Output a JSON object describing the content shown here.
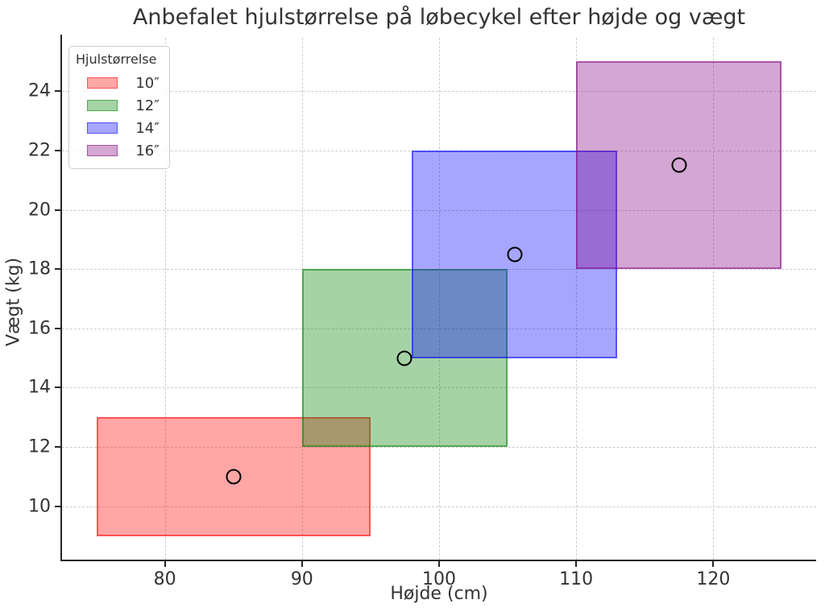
{
  "chart_data": {
    "type": "scatter",
    "title": "Anbefalet hjulstørrelse på løbecykel efter højde og vægt",
    "xlabel": "Højde (cm)",
    "ylabel": "Vægt (kg)",
    "xlim": [
      72.5,
      127.5
    ],
    "ylim": [
      8.2,
      25.8
    ],
    "xticks": [
      80,
      90,
      100,
      110,
      120
    ],
    "yticks": [
      10,
      12,
      14,
      16,
      18,
      20,
      22,
      24
    ],
    "grid": true,
    "grid_style": "dashed",
    "grid_color": "#cdcdcd",
    "spine_color": "#262626",
    "text_color": "#333333",
    "legend": {
      "title": "Hjulstørrelse",
      "position": "upper left"
    },
    "style": {
      "fill_alpha": 0.35,
      "edge_alpha": 0.5,
      "marker": {
        "shape": "circle-hollow",
        "edge_color": "#000000"
      }
    },
    "series": [
      {
        "name": "10″",
        "color": "#ff0000",
        "height_range_cm": [
          75,
          95
        ],
        "weight_range_kg": [
          9,
          13
        ],
        "center_point": {
          "x": 85,
          "y": 11
        }
      },
      {
        "name": "12″",
        "color": "#008000",
        "height_range_cm": [
          90,
          105
        ],
        "weight_range_kg": [
          12,
          18
        ],
        "center_point": {
          "x": 97.5,
          "y": 15
        }
      },
      {
        "name": "14″",
        "color": "#0000ff",
        "height_range_cm": [
          98,
          113
        ],
        "weight_range_kg": [
          15,
          22
        ],
        "center_point": {
          "x": 105.5,
          "y": 18.5
        }
      },
      {
        "name": "16″",
        "color": "#800080",
        "height_range_cm": [
          110,
          125
        ],
        "weight_range_kg": [
          18,
          25
        ],
        "center_point": {
          "x": 117.5,
          "y": 21.5
        }
      }
    ]
  }
}
